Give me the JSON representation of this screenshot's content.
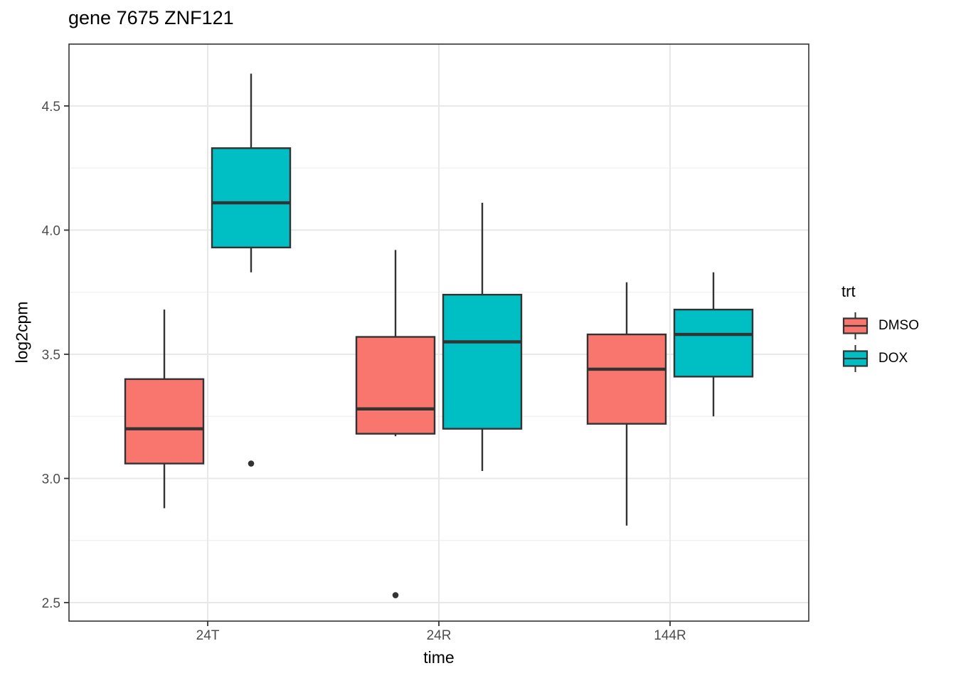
{
  "title": "gene 7675 ZNF121",
  "colors": {
    "dmso": "#F8766D",
    "dox": "#00BFC4",
    "stroke": "#333333",
    "grid_major": "#E8E8E8",
    "grid_minor": "#EFEFEF",
    "axis_text": "#4D4D4D",
    "title_text": "#000000"
  },
  "chart_data": {
    "type": "boxplot",
    "title": "gene 7675 ZNF121",
    "xlabel": "time",
    "ylabel": "log2cpm",
    "categories": [
      "24T",
      "24R",
      "144R"
    ],
    "y_tick_labels": [
      "2.5",
      "3.0",
      "3.5",
      "4.0",
      "4.5"
    ],
    "ylim": [
      2.4255,
      4.749
    ],
    "grid": {
      "major": true,
      "minor": true,
      "y_minor": [
        2.75,
        3.25,
        3.75,
        4.25
      ]
    },
    "legend_position": "right",
    "legend": {
      "title": "trt",
      "entries": [
        {
          "label": "DMSO",
          "color": "#F8766D"
        },
        {
          "label": "DOX",
          "color": "#00BFC4"
        }
      ]
    },
    "series": [
      {
        "name": "DMSO",
        "color": "#F8766D",
        "boxes": [
          {
            "category": "24T",
            "whisker_low": 2.88,
            "q1": 3.06,
            "median": 3.2,
            "q3": 3.4,
            "whisker_high": 3.68,
            "outliers": []
          },
          {
            "category": "24R",
            "whisker_low": 3.17,
            "q1": 3.18,
            "median": 3.28,
            "q3": 3.57,
            "whisker_high": 3.92,
            "outliers": [
              2.53
            ]
          },
          {
            "category": "144R",
            "whisker_low": 2.81,
            "q1": 3.22,
            "median": 3.44,
            "q3": 3.58,
            "whisker_high": 3.79,
            "outliers": []
          }
        ]
      },
      {
        "name": "DOX",
        "color": "#00BFC4",
        "boxes": [
          {
            "category": "24T",
            "whisker_low": 3.83,
            "q1": 3.93,
            "median": 4.11,
            "q3": 4.33,
            "whisker_high": 4.63,
            "outliers": [
              3.06
            ]
          },
          {
            "category": "24R",
            "whisker_low": 3.03,
            "q1": 3.2,
            "median": 3.55,
            "q3": 3.74,
            "whisker_high": 4.11,
            "outliers": []
          },
          {
            "category": "144R",
            "whisker_low": 3.25,
            "q1": 3.41,
            "median": 3.58,
            "q3": 3.68,
            "whisker_high": 3.83,
            "outliers": []
          }
        ]
      }
    ]
  }
}
